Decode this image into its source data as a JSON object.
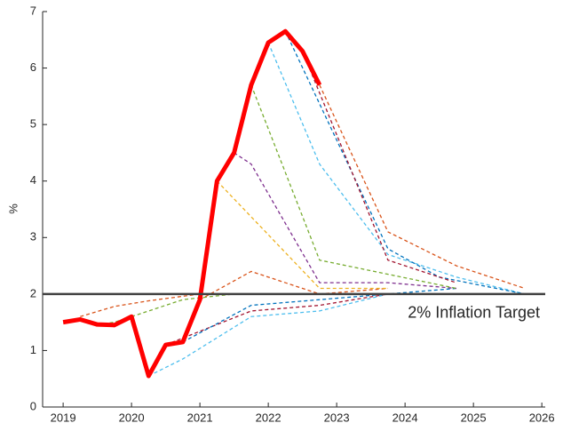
{
  "chart_data": {
    "type": "line",
    "y_label": "%",
    "xlim": [
      2018.7,
      2026.05
    ],
    "ylim": [
      0,
      7
    ],
    "xticks": [
      2019,
      2020,
      2021,
      2022,
      2023,
      2024,
      2025,
      2026
    ],
    "yticks": [
      0,
      1,
      2,
      3,
      4,
      5,
      6,
      7
    ],
    "reference_line": {
      "value": 2,
      "label": "2% Inflation Target",
      "color": "#404040"
    },
    "series": [
      {
        "color": "#d95319",
        "style": "dashed",
        "x": [
          2019.25,
          2019.75,
          2020.25,
          2021,
          2022
        ],
        "values": [
          1.6,
          1.78,
          1.88,
          2.0,
          2.0
        ]
      },
      {
        "color": "#77ac30",
        "style": "dashed",
        "x": [
          2019.5,
          2019.75,
          2020
        ],
        "values": [
          1.46,
          1.5,
          1.6
        ]
      },
      {
        "color": "#77ac30",
        "style": "dashed",
        "x": [
          2020,
          2020.75,
          2021.5
        ],
        "values": [
          1.6,
          1.9,
          2.0
        ]
      },
      {
        "color": "#4dbeee",
        "style": "dashed",
        "x": [
          2020.25,
          2020.75,
          2021.75,
          2022.75,
          2023.75
        ],
        "values": [
          0.55,
          0.85,
          1.6,
          1.7,
          2.0
        ]
      },
      {
        "color": "#a2142f",
        "style": "dashed",
        "x": [
          2020.5,
          2021.75,
          2022.75,
          2023.75
        ],
        "values": [
          1.1,
          1.7,
          1.8,
          2.0
        ]
      },
      {
        "color": "#0072bd",
        "style": "dashed",
        "x": [
          2020.75,
          2021.75,
          2023.75,
          2024.75
        ],
        "values": [
          1.15,
          1.8,
          2.0,
          2.1
        ]
      },
      {
        "color": "#d95319",
        "style": "dashed",
        "x": [
          2021,
          2021.75,
          2022.75,
          2023.75
        ],
        "values": [
          1.9,
          2.4,
          2.0,
          2.1
        ]
      },
      {
        "color": "#edb120",
        "style": "dashed",
        "x": [
          2021.25,
          2022.75,
          2023.75
        ],
        "values": [
          4.0,
          2.1,
          2.1
        ]
      },
      {
        "color": "#7e2f8e",
        "style": "dashed",
        "x": [
          2021.5,
          2021.75,
          2022.75,
          2023.75,
          2024.75
        ],
        "values": [
          4.5,
          4.3,
          2.2,
          2.2,
          2.1
        ]
      },
      {
        "color": "#77ac30",
        "style": "dashed",
        "x": [
          2021.75,
          2022.75,
          2024.75
        ],
        "values": [
          5.7,
          2.6,
          2.1
        ]
      },
      {
        "color": "#4dbeee",
        "style": "dashed",
        "x": [
          2022,
          2022.75,
          2023.75,
          2024.75,
          2025.75
        ],
        "values": [
          6.45,
          4.3,
          2.7,
          2.3,
          2.0
        ]
      },
      {
        "color": "#0072bd",
        "style": "dashed",
        "x": [
          2022.25,
          2023.75,
          2024.5,
          2025.75
        ],
        "values": [
          6.65,
          2.8,
          2.3,
          2.0
        ]
      },
      {
        "color": "#a2142f",
        "style": "dashed",
        "x": [
          2022.5,
          2023.75,
          2024.75
        ],
        "values": [
          6.3,
          2.6,
          2.2
        ]
      },
      {
        "color": "#d95319",
        "style": "dashed",
        "x": [
          2022.75,
          2023.75,
          2024.75,
          2025.75
        ],
        "values": [
          5.7,
          3.1,
          2.5,
          2.1
        ]
      },
      {
        "color": "#ff0000",
        "style": "solid",
        "x": [
          2019,
          2019.25,
          2019.5,
          2019.75,
          2020,
          2020.25,
          2020.5,
          2020.75,
          2021,
          2021.25,
          2021.5,
          2021.75,
          2022,
          2022.25,
          2022.5,
          2022.75
        ],
        "values": [
          1.5,
          1.55,
          1.46,
          1.45,
          1.6,
          0.55,
          1.1,
          1.15,
          1.9,
          4.0,
          4.5,
          5.7,
          6.45,
          6.65,
          6.3,
          5.7
        ]
      }
    ]
  }
}
